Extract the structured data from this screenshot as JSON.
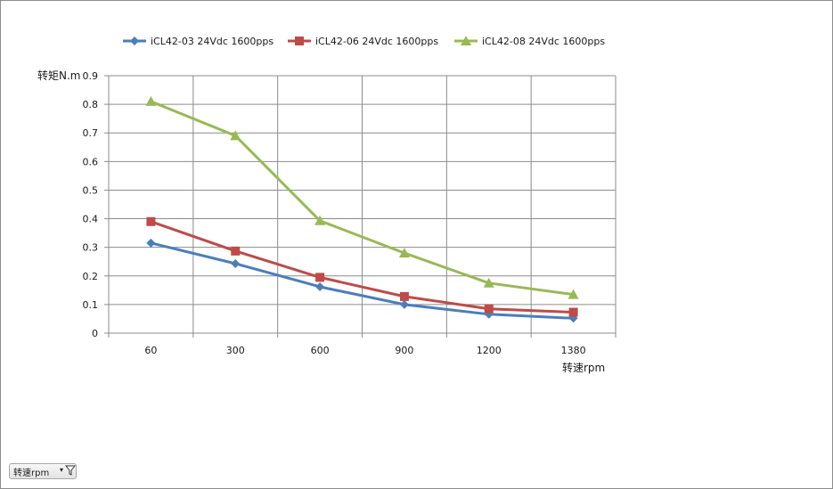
{
  "chart_data": {
    "type": "line",
    "categories": [
      "60",
      "300",
      "600",
      "900",
      "1200",
      "1380"
    ],
    "ylabel": "转矩N.m",
    "xlabel": "转速rpm",
    "ylim": [
      0,
      0.9
    ],
    "yticks": [
      "0",
      "0.1",
      "0.2",
      "0.3",
      "0.4",
      "0.5",
      "0.6",
      "0.7",
      "0.8",
      "0.9"
    ],
    "grid": true,
    "legend_position": "top",
    "series": [
      {
        "name": "iCL42-03 24Vdc 1600pps",
        "color": "#4a7ebb",
        "marker": "diamond",
        "values": [
          0.315,
          0.243,
          0.162,
          0.1,
          0.066,
          0.052
        ]
      },
      {
        "name": "iCL42-06 24Vdc 1600pps",
        "color": "#be4b48",
        "marker": "square",
        "values": [
          0.39,
          0.287,
          0.195,
          0.128,
          0.085,
          0.073
        ]
      },
      {
        "name": "iCL42-08 24Vdc 1600pps",
        "color": "#98b954",
        "marker": "triangle",
        "values": [
          0.81,
          0.69,
          0.393,
          0.28,
          0.175,
          0.135
        ]
      }
    ]
  },
  "filter_button": {
    "label": "转速rpm",
    "icon": "filter-funnel-icon"
  }
}
